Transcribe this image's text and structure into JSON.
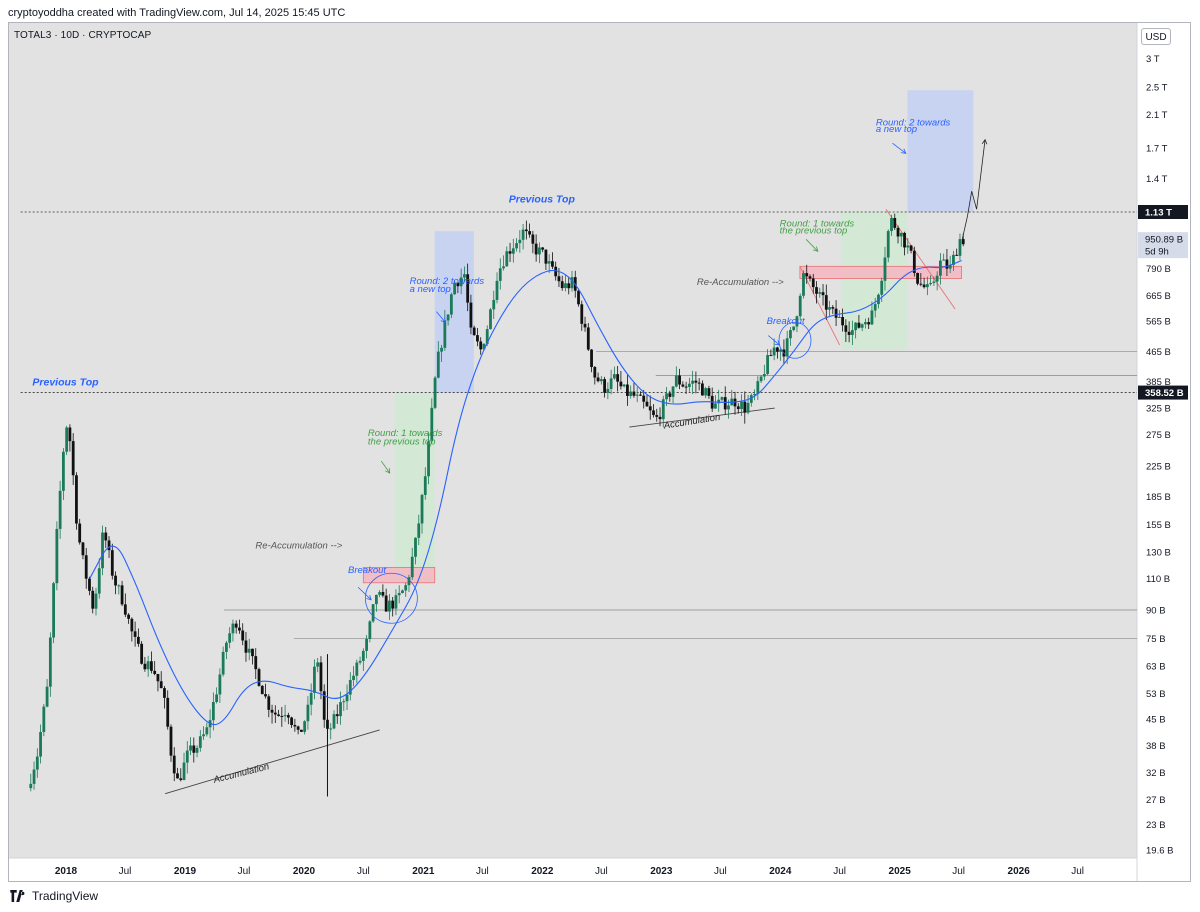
{
  "header": {
    "credit": "cryptoyoddha created with TradingView.com, Jul 14, 2025 15:45 UTC"
  },
  "symbol": {
    "label": "TOTAL3 · 10D · CRYPTOCAP"
  },
  "currency": {
    "label": "USD"
  },
  "footer": {
    "brand": "TradingView",
    "logo_icon": "tradingview-logo-icon"
  },
  "chart_data": {
    "type": "candlestick",
    "scale": "log",
    "ylim": [
      17500000000,
      3200000000000
    ],
    "xlim": [
      "2017-09-01",
      "2026-11-01"
    ],
    "y_ticks": [
      {
        "v": 3000000000000,
        "t": "3 T"
      },
      {
        "v": 2500000000000,
        "t": "2.5 T"
      },
      {
        "v": 2100000000000,
        "t": "2.1 T"
      },
      {
        "v": 1700000000000,
        "t": "1.7 T"
      },
      {
        "v": 1400000000000,
        "t": "1.4 T"
      },
      {
        "v": 790000000000,
        "t": "790 B"
      },
      {
        "v": 665000000000,
        "t": "665 B"
      },
      {
        "v": 565000000000,
        "t": "565 B"
      },
      {
        "v": 465000000000,
        "t": "465 B"
      },
      {
        "v": 385000000000,
        "t": "385 B"
      },
      {
        "v": 325000000000,
        "t": "325 B"
      },
      {
        "v": 275000000000,
        "t": "275 B"
      },
      {
        "v": 225000000000,
        "t": "225 B"
      },
      {
        "v": 185000000000,
        "t": "185 B"
      },
      {
        "v": 155000000000,
        "t": "155 B"
      },
      {
        "v": 130000000000,
        "t": "130 B"
      },
      {
        "v": 110000000000,
        "t": "110 B"
      },
      {
        "v": 90000000000,
        "t": "90 B"
      },
      {
        "v": 75000000000,
        "t": "75 B"
      },
      {
        "v": 63000000000,
        "t": "63 B"
      },
      {
        "v": 53000000000,
        "t": "53 B"
      },
      {
        "v": 45000000000,
        "t": "45 B"
      },
      {
        "v": 38000000000,
        "t": "38 B"
      },
      {
        "v": 32000000000,
        "t": "32 B"
      },
      {
        "v": 27000000000,
        "t": "27 B"
      },
      {
        "v": 23000000000,
        "t": "23 B"
      },
      {
        "v": 19600000000,
        "t": "19.6 B"
      }
    ],
    "x_ticks": [
      {
        "d": "2018-01-01",
        "t": "2018",
        "bold": true
      },
      {
        "d": "2018-07-01",
        "t": "Jul"
      },
      {
        "d": "2019-01-01",
        "t": "2019",
        "bold": true
      },
      {
        "d": "2019-07-01",
        "t": "Jul"
      },
      {
        "d": "2020-01-01",
        "t": "2020",
        "bold": true
      },
      {
        "d": "2020-07-01",
        "t": "Jul"
      },
      {
        "d": "2021-01-01",
        "t": "2021",
        "bold": true
      },
      {
        "d": "2021-07-01",
        "t": "Jul"
      },
      {
        "d": "2022-01-01",
        "t": "2022",
        "bold": true
      },
      {
        "d": "2022-07-01",
        "t": "Jul"
      },
      {
        "d": "2023-01-01",
        "t": "2023",
        "bold": true
      },
      {
        "d": "2023-07-01",
        "t": "Jul"
      },
      {
        "d": "2024-01-01",
        "t": "2024",
        "bold": true
      },
      {
        "d": "2024-07-01",
        "t": "Jul"
      },
      {
        "d": "2025-01-01",
        "t": "2025",
        "bold": true
      },
      {
        "d": "2025-07-01",
        "t": "Jul"
      },
      {
        "d": "2026-01-01",
        "t": "2026",
        "bold": true
      },
      {
        "d": "2026-07-01",
        "t": "Jul"
      }
    ],
    "price_badges": [
      {
        "v": 1130000000000,
        "t": "1.13 T",
        "style": "dark"
      },
      {
        "v": 950890000000,
        "t": "950.89 B",
        "sub": "5d 9h",
        "style": "light"
      },
      {
        "v": 358520000000,
        "t": "358.52 B",
        "style": "dark"
      }
    ],
    "series": [
      {
        "name": "",
        "kind": "ohlc_path",
        "anchors": [
          [
            "2017-09-10",
            29000000000.0
          ],
          [
            "2017-10-10",
            36000000000.0
          ],
          [
            "2017-11-10",
            55000000000.0
          ],
          [
            "2017-12-10",
            150000000000.0
          ],
          [
            "2018-01-05",
            300000000000.0
          ],
          [
            "2018-01-20",
            260000000000.0
          ],
          [
            "2018-02-10",
            150000000000.0
          ],
          [
            "2018-03-01",
            120000000000.0
          ],
          [
            "2018-04-01",
            90000000000.0
          ],
          [
            "2018-05-01",
            150000000000.0
          ],
          [
            "2018-06-01",
            110000000000.0
          ],
          [
            "2018-07-01",
            95000000000.0
          ],
          [
            "2018-08-01",
            75000000000.0
          ],
          [
            "2018-09-01",
            65000000000.0
          ],
          [
            "2018-10-01",
            62000000000.0
          ],
          [
            "2018-11-01",
            52000000000.0
          ],
          [
            "2018-11-25",
            36000000000.0
          ],
          [
            "2018-12-15",
            30000000000.0
          ],
          [
            "2019-01-15",
            36000000000.0
          ],
          [
            "2019-02-15",
            38000000000.0
          ],
          [
            "2019-03-15",
            42000000000.0
          ],
          [
            "2019-04-15",
            55000000000.0
          ],
          [
            "2019-05-15",
            75000000000.0
          ],
          [
            "2019-06-15",
            85000000000.0
          ],
          [
            "2019-07-10",
            72000000000.0
          ],
          [
            "2019-08-15",
            60000000000.0
          ],
          [
            "2019-09-15",
            50000000000.0
          ],
          [
            "2019-10-15",
            46000000000.0
          ],
          [
            "2019-11-15",
            48000000000.0
          ],
          [
            "2019-12-20",
            40000000000.0
          ],
          [
            "2020-01-20",
            48000000000.0
          ],
          [
            "2020-02-15",
            68000000000.0
          ],
          [
            "2020-03-13",
            40000000000.0
          ],
          [
            "2020-04-15",
            46000000000.0
          ],
          [
            "2020-05-15",
            54000000000.0
          ],
          [
            "2020-06-15",
            62000000000.0
          ],
          [
            "2020-07-15",
            72000000000.0
          ],
          [
            "2020-08-15",
            100000000000.0
          ],
          [
            "2020-09-15",
            92000000000.0
          ],
          [
            "2020-10-15",
            95000000000.0
          ],
          [
            "2020-11-15",
            105000000000.0
          ],
          [
            "2020-12-15",
            140000000000.0
          ],
          [
            "2021-01-15",
            220000000000.0
          ],
          [
            "2021-02-15",
            420000000000.0
          ],
          [
            "2021-03-15",
            560000000000.0
          ],
          [
            "2021-04-10",
            720000000000.0
          ],
          [
            "2021-05-12",
            760000000000.0
          ],
          [
            "2021-06-01",
            520000000000.0
          ],
          [
            "2021-07-01",
            470000000000.0
          ],
          [
            "2021-07-25",
            560000000000.0
          ],
          [
            "2021-08-20",
            760000000000.0
          ],
          [
            "2021-09-15",
            860000000000.0
          ],
          [
            "2021-11-10",
            1000000000000.0
          ],
          [
            "2021-12-10",
            900000000000.0
          ],
          [
            "2022-01-10",
            860000000000.0
          ],
          [
            "2022-02-10",
            760000000000.0
          ],
          [
            "2022-03-10",
            700000000000.0
          ],
          [
            "2022-04-10",
            720000000000.0
          ],
          [
            "2022-05-10",
            560000000000.0
          ],
          [
            "2022-06-15",
            400000000000.0
          ],
          [
            "2022-07-15",
            370000000000.0
          ],
          [
            "2022-08-15",
            390000000000.0
          ],
          [
            "2022-09-15",
            360000000000.0
          ],
          [
            "2022-10-15",
            350000000000.0
          ],
          [
            "2022-11-15",
            330000000000.0
          ],
          [
            "2022-12-20",
            300000000000.0
          ],
          [
            "2023-01-20",
            340000000000.0
          ],
          [
            "2023-02-20",
            390000000000.0
          ],
          [
            "2023-03-20",
            375000000000.0
          ],
          [
            "2023-04-20",
            385000000000.0
          ],
          [
            "2023-05-20",
            360000000000.0
          ],
          [
            "2023-06-15",
            330000000000.0
          ],
          [
            "2023-07-15",
            335000000000.0
          ],
          [
            "2023-08-20",
            340000000000.0
          ],
          [
            "2023-09-20",
            325000000000.0
          ],
          [
            "2023-10-20",
            350000000000.0
          ],
          [
            "2023-11-20",
            420000000000.0
          ],
          [
            "2023-12-20",
            480000000000.0
          ],
          [
            "2024-01-20",
            470000000000.0
          ],
          [
            "2024-02-20",
            560000000000.0
          ],
          [
            "2024-03-15",
            760000000000.0
          ],
          [
            "2024-04-15",
            700000000000.0
          ],
          [
            "2024-05-15",
            640000000000.0
          ],
          [
            "2024-06-15",
            590000000000.0
          ],
          [
            "2024-07-15",
            560000000000.0
          ],
          [
            "2024-08-15",
            530000000000.0
          ],
          [
            "2024-09-15",
            560000000000.0
          ],
          [
            "2024-10-15",
            590000000000.0
          ],
          [
            "2024-11-10",
            740000000000.0
          ],
          [
            "2024-12-08",
            1080000000000.0
          ],
          [
            "2025-01-05",
            1000000000000.0
          ],
          [
            "2025-02-05",
            880000000000.0
          ],
          [
            "2025-03-05",
            720000000000.0
          ],
          [
            "2025-04-08",
            680000000000.0
          ],
          [
            "2025-05-10",
            820000000000.0
          ],
          [
            "2025-06-10",
            790000000000.0
          ],
          [
            "2025-07-10",
            950000000000.0
          ]
        ]
      },
      {
        "name": "",
        "kind": "moving_average",
        "anchors": [
          [
            "2018-03-15",
            110000000000.0
          ],
          [
            "2018-05-25",
            145000000000.0
          ],
          [
            "2018-08-01",
            108000000000.0
          ],
          [
            "2018-10-15",
            72000000000.0
          ],
          [
            "2019-01-01",
            52000000000.0
          ],
          [
            "2019-03-15",
            43000000000.0
          ],
          [
            "2019-05-01",
            44000000000.0
          ],
          [
            "2019-07-01",
            55000000000.0
          ],
          [
            "2019-09-01",
            58000000000.0
          ],
          [
            "2019-11-15",
            55000000000.0
          ],
          [
            "2020-02-01",
            54000000000.0
          ],
          [
            "2020-04-15",
            50000000000.0
          ],
          [
            "2020-07-01",
            58000000000.0
          ],
          [
            "2020-10-01",
            80000000000.0
          ],
          [
            "2020-12-15",
            105000000000.0
          ],
          [
            "2021-02-15",
            160000000000.0
          ],
          [
            "2021-04-15",
            290000000000.0
          ],
          [
            "2021-06-15",
            430000000000.0
          ],
          [
            "2021-08-15",
            560000000000.0
          ],
          [
            "2021-10-15",
            680000000000.0
          ],
          [
            "2021-12-15",
            760000000000.0
          ],
          [
            "2022-02-15",
            790000000000.0
          ],
          [
            "2022-04-15",
            720000000000.0
          ],
          [
            "2022-06-15",
            560000000000.0
          ],
          [
            "2022-09-01",
            420000000000.0
          ],
          [
            "2022-11-15",
            350000000000.0
          ],
          [
            "2023-02-01",
            330000000000.0
          ],
          [
            "2023-05-01",
            340000000000.0
          ],
          [
            "2023-08-01",
            335000000000.0
          ],
          [
            "2023-10-15",
            345000000000.0
          ],
          [
            "2023-12-15",
            400000000000.0
          ],
          [
            "2024-02-15",
            470000000000.0
          ],
          [
            "2024-04-15",
            560000000000.0
          ],
          [
            "2024-06-15",
            590000000000.0
          ],
          [
            "2024-09-01",
            600000000000.0
          ],
          [
            "2024-11-15",
            660000000000.0
          ],
          [
            "2025-01-15",
            760000000000.0
          ],
          [
            "2025-03-15",
            800000000000.0
          ],
          [
            "2025-05-15",
            790000000000.0
          ],
          [
            "2025-07-10",
            830000000000.0
          ]
        ]
      }
    ],
    "horizontal_lines": [
      {
        "v": 1130000000000,
        "style": "dotted",
        "from": "2017-08-15"
      },
      {
        "v": 358520000000,
        "style": "dotted",
        "from": "2017-08-15"
      },
      {
        "v": 465000000000,
        "style": "solid",
        "from": "2022-06-15"
      },
      {
        "v": 400000000000,
        "style": "solid",
        "from": "2022-12-15"
      },
      {
        "v": 90000000000,
        "style": "solid",
        "from": "2019-05-01"
      },
      {
        "v": 75000000000,
        "style": "solid",
        "from": "2019-12-01"
      }
    ],
    "zones": [
      {
        "kind": "blue",
        "x0": "2021-02-05",
        "x1": "2021-06-05",
        "y0": 358520000000,
        "y1": 1000000000000
      },
      {
        "kind": "green",
        "x0": "2020-10-05",
        "x1": "2021-02-05",
        "y0": 107000000000,
        "y1": 358520000000
      },
      {
        "kind": "red",
        "x0": "2020-07-01",
        "x1": "2021-02-05",
        "y0": 107000000000,
        "y1": 118000000000
      },
      {
        "kind": "blue",
        "x0": "2025-01-25",
        "x1": "2025-08-15",
        "y0": 1130000000000,
        "y1": 2450000000000
      },
      {
        "kind": "green",
        "x0": "2024-07-05",
        "x1": "2025-01-25",
        "y0": 470000000000,
        "y1": 1130000000000
      },
      {
        "kind": "red",
        "x0": "2024-03-01",
        "x1": "2025-07-10",
        "y0": 740000000000,
        "y1": 800000000000
      }
    ],
    "annotations": [
      {
        "text": "Previous Top",
        "d": "2017-09-20",
        "v": 375000000000,
        "color": "#2962ff",
        "bold": true,
        "italic": true
      },
      {
        "text": "Previous Top",
        "d": "2021-09-20",
        "v": 1200000000000,
        "color": "#2962ff",
        "bold": true,
        "italic": true
      },
      {
        "text": "Round: 2 towards",
        "d": "2020-11-20",
        "v": 715000000000,
        "color": "#2962ff",
        "italic": true
      },
      {
        "text": "a new top",
        "d": "2020-11-20",
        "v": 680000000000,
        "color": "#2962ff",
        "italic": true
      },
      {
        "text": "Round: 1 towards",
        "d": "2020-07-15",
        "v": 272000000000,
        "color": "#43a047",
        "italic": true
      },
      {
        "text": "the previous top",
        "d": "2020-07-15",
        "v": 258000000000,
        "color": "#43a047",
        "italic": true
      },
      {
        "text": "Re-Accumulation -->",
        "d": "2019-08-05",
        "v": 133000000000,
        "color": "#555",
        "italic": true
      },
      {
        "text": "Breakout",
        "d": "2020-05-15",
        "v": 114000000000,
        "color": "#2962ff",
        "italic": true
      },
      {
        "text": "Accumulation",
        "d": "2019-04-01",
        "v": 30000000000,
        "color": "#222",
        "italic": true,
        "rotate": -14
      },
      {
        "text": "Accumulation",
        "d": "2023-01-10",
        "v": 285000000000,
        "color": "#222",
        "italic": true,
        "rotate": -9
      },
      {
        "text": "Re-Accumulation -->",
        "d": "2023-04-20",
        "v": 710000000000,
        "color": "#555",
        "italic": true
      },
      {
        "text": "Breakout",
        "d": "2023-11-20",
        "v": 555000000000,
        "color": "#2962ff",
        "italic": true
      },
      {
        "text": "Round: 1 towards",
        "d": "2023-12-30",
        "v": 1030000000000,
        "color": "#43a047",
        "italic": true
      },
      {
        "text": "the previous top",
        "d": "2023-12-30",
        "v": 985000000000,
        "color": "#43a047",
        "italic": true
      },
      {
        "text": "Round: 2 towards",
        "d": "2024-10-20",
        "v": 1960000000000,
        "color": "#2962ff",
        "italic": true
      },
      {
        "text": "a new top",
        "d": "2024-10-20",
        "v": 1880000000000,
        "color": "#2962ff",
        "italic": true
      }
    ],
    "trendlines": [
      {
        "from": [
          "2018-11-01",
          28000000000
        ],
        "to": [
          "2020-08-20",
          42000000000
        ],
        "color": "#444"
      },
      {
        "from": [
          "2022-09-25",
          288000000000
        ],
        "to": [
          "2023-12-15",
          325000000000
        ],
        "color": "#444"
      },
      {
        "from": [
          "2024-03-01",
          800000000000
        ],
        "to": [
          "2024-07-01",
          485000000000
        ],
        "color": "#e57373"
      },
      {
        "from": [
          "2024-11-20",
          1150000000000
        ],
        "to": [
          "2025-06-20",
          610000000000
        ],
        "color": "#e57373"
      }
    ],
    "colors": {
      "up": "#1b7a5a",
      "down": "#111111",
      "ma": "#2962ff",
      "blue_zone": "#bfcdf6",
      "green_zone": "#cfe9d2",
      "red_zone": "#f5b6c2",
      "plot_bg": "#e2e2e2"
    }
  }
}
